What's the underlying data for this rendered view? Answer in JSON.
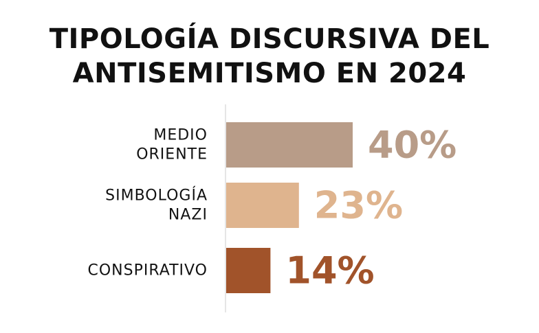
{
  "chart_data": {
    "type": "bar",
    "orientation": "horizontal",
    "title_lines": [
      "TIPOLOGÍA DISCURSIVA DEL",
      "ANTISEMITISMO EN 2024"
    ],
    "categories": [
      [
        "MEDIO",
        "ORIENTE"
      ],
      [
        "SIMBOLOGÍA",
        "NAZI"
      ],
      [
        "CONSPIRATIVO"
      ]
    ],
    "values": [
      40,
      23,
      14
    ],
    "value_labels": [
      "40%",
      "23%",
      "14%"
    ],
    "colors": [
      "#b89c88",
      "#dfb48e",
      "#a1532a"
    ],
    "unit": "%",
    "xlim": [
      0,
      40
    ],
    "grid": false,
    "legend": "none"
  }
}
